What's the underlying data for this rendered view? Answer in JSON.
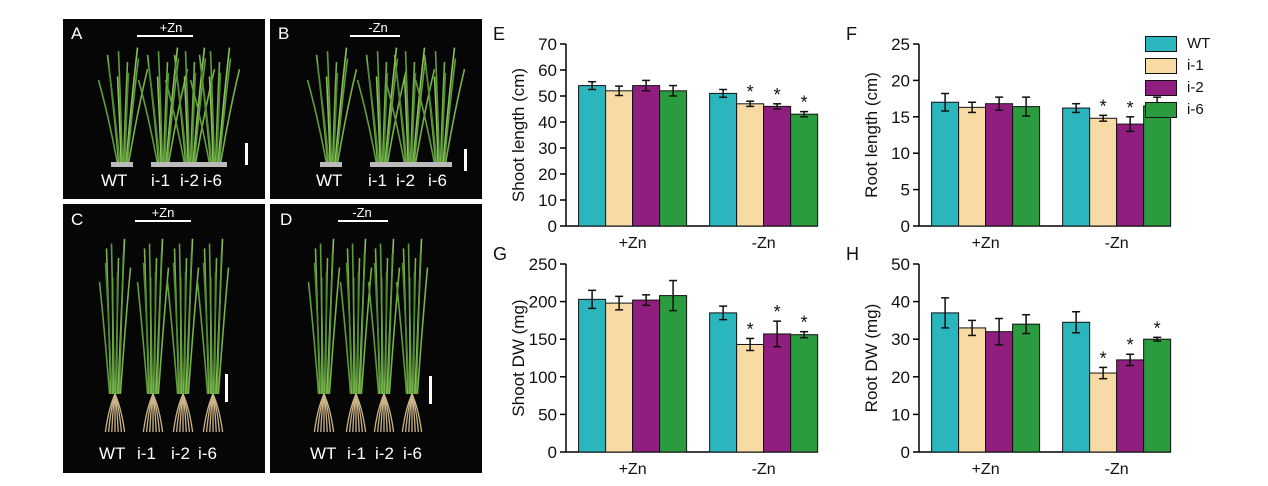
{
  "photos": [
    {
      "label": "A",
      "treatment": "+Zn",
      "lines": [
        "WT",
        "i-1",
        "i-2",
        "i-6"
      ]
    },
    {
      "label": "B",
      "treatment": "-Zn",
      "lines": [
        "WT",
        "i-1",
        "i-2",
        "i-6"
      ]
    },
    {
      "label": "C",
      "treatment": "+Zn",
      "lines": [
        "WT",
        "i-1",
        "i-2",
        "i-6"
      ]
    },
    {
      "label": "D",
      "treatment": "-Zn",
      "lines": [
        "WT",
        "i-1",
        "i-2",
        "i-6"
      ]
    }
  ],
  "legend": [
    {
      "name": "WT",
      "color": "#2bb5bd"
    },
    {
      "name": "i-1",
      "color": "#f8dba4"
    },
    {
      "name": "i-2",
      "color": "#901e7f"
    },
    {
      "name": "i-6",
      "color": "#2a9b3f"
    }
  ],
  "chart_data": [
    {
      "panel": "E",
      "type": "bar",
      "categories": [
        "+Zn",
        "-Zn"
      ],
      "ylabel": "Shoot length (cm)",
      "ylim": [
        0,
        70
      ],
      "yticks": [
        0,
        10,
        20,
        30,
        40,
        50,
        60,
        70
      ],
      "series": [
        {
          "name": "WT",
          "values": [
            54,
            51
          ],
          "errors": [
            1.5,
            1.5
          ]
        },
        {
          "name": "i-1",
          "values": [
            52,
            47
          ],
          "errors": [
            1.8,
            1.0
          ]
        },
        {
          "name": "i-2",
          "values": [
            54,
            46
          ],
          "errors": [
            2.0,
            1.0
          ]
        },
        {
          "name": "i-6",
          "values": [
            52,
            43
          ],
          "errors": [
            2.0,
            1.0
          ]
        }
      ],
      "significance": [
        [
          false,
          false
        ],
        [
          false,
          true
        ],
        [
          false,
          true
        ],
        [
          false,
          true
        ]
      ]
    },
    {
      "panel": "F",
      "type": "bar",
      "categories": [
        "+Zn",
        "-Zn"
      ],
      "ylabel": "Root length (cm)",
      "ylim": [
        0,
        25
      ],
      "yticks": [
        0,
        5,
        10,
        15,
        20,
        25
      ],
      "series": [
        {
          "name": "WT",
          "values": [
            17,
            16.2
          ],
          "errors": [
            1.2,
            0.6
          ]
        },
        {
          "name": "i-1",
          "values": [
            16.3,
            14.8
          ],
          "errors": [
            0.7,
            0.4
          ]
        },
        {
          "name": "i-2",
          "values": [
            16.8,
            14
          ],
          "errors": [
            0.9,
            1.0
          ]
        },
        {
          "name": "i-6",
          "values": [
            16.4,
            16.5
          ],
          "errors": [
            1.3,
            1.2
          ]
        }
      ],
      "significance": [
        [
          false,
          false
        ],
        [
          false,
          true
        ],
        [
          false,
          true
        ],
        [
          false,
          false
        ]
      ]
    },
    {
      "panel": "G",
      "type": "bar",
      "categories": [
        "+Zn",
        "-Zn"
      ],
      "ylabel": "Shoot DW (mg)",
      "ylim": [
        0,
        250
      ],
      "yticks": [
        0,
        50,
        100,
        150,
        200,
        250
      ],
      "series": [
        {
          "name": "WT",
          "values": [
            203,
            185
          ],
          "errors": [
            12,
            9
          ]
        },
        {
          "name": "i-1",
          "values": [
            198,
            143
          ],
          "errors": [
            9,
            8
          ]
        },
        {
          "name": "i-2",
          "values": [
            202,
            157
          ],
          "errors": [
            7,
            17
          ]
        },
        {
          "name": "i-6",
          "values": [
            208,
            156
          ],
          "errors": [
            20,
            4
          ]
        }
      ],
      "significance": [
        [
          false,
          false
        ],
        [
          false,
          true
        ],
        [
          false,
          true
        ],
        [
          false,
          true
        ]
      ]
    },
    {
      "panel": "H",
      "type": "bar",
      "categories": [
        "+Zn",
        "-Zn"
      ],
      "ylabel": "Root DW (mg)",
      "ylim": [
        0,
        50
      ],
      "yticks": [
        0,
        10,
        20,
        30,
        40,
        50
      ],
      "series": [
        {
          "name": "WT",
          "values": [
            37,
            34.5
          ],
          "errors": [
            4,
            2.8
          ]
        },
        {
          "name": "i-1",
          "values": [
            33,
            21
          ],
          "errors": [
            2,
            1.5
          ]
        },
        {
          "name": "i-2",
          "values": [
            32,
            24.5
          ],
          "errors": [
            3.5,
            1.5
          ]
        },
        {
          "name": "i-6",
          "values": [
            34,
            30
          ],
          "errors": [
            2.5,
            0.5
          ]
        }
      ],
      "significance": [
        [
          false,
          false
        ],
        [
          false,
          true
        ],
        [
          false,
          true
        ],
        [
          false,
          true
        ]
      ]
    }
  ]
}
